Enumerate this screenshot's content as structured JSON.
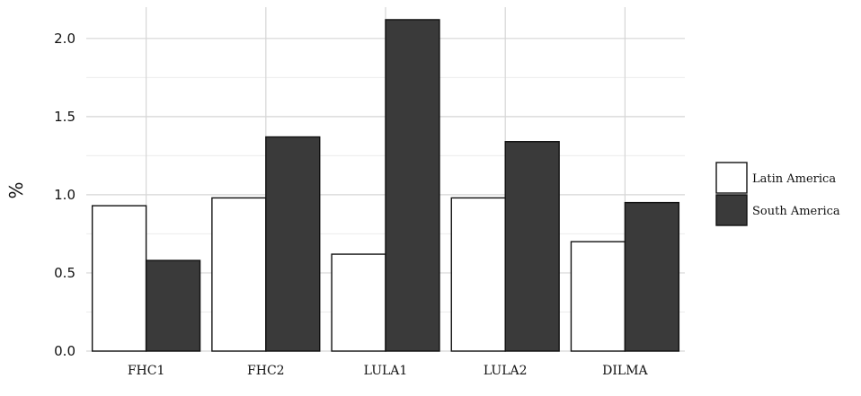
{
  "chart_data": {
    "type": "bar",
    "title": "",
    "xlabel": "",
    "ylabel": "%",
    "ylim": [
      0,
      2.2
    ],
    "yticks": [
      "0.0",
      "0.5",
      "1.0",
      "1.5",
      "2.0"
    ],
    "grid": true,
    "legend_position": "right",
    "categories": [
      "FHC1",
      "FHC2",
      "LULA1",
      "LULA2",
      "DILMA"
    ],
    "series": [
      {
        "name": "Latin America",
        "color": "#ffffff",
        "values": [
          0.93,
          0.98,
          0.62,
          0.98,
          0.7
        ]
      },
      {
        "name": "South America",
        "color": "#3a3a3a",
        "values": [
          0.58,
          1.37,
          2.12,
          1.34,
          0.95
        ]
      }
    ]
  }
}
